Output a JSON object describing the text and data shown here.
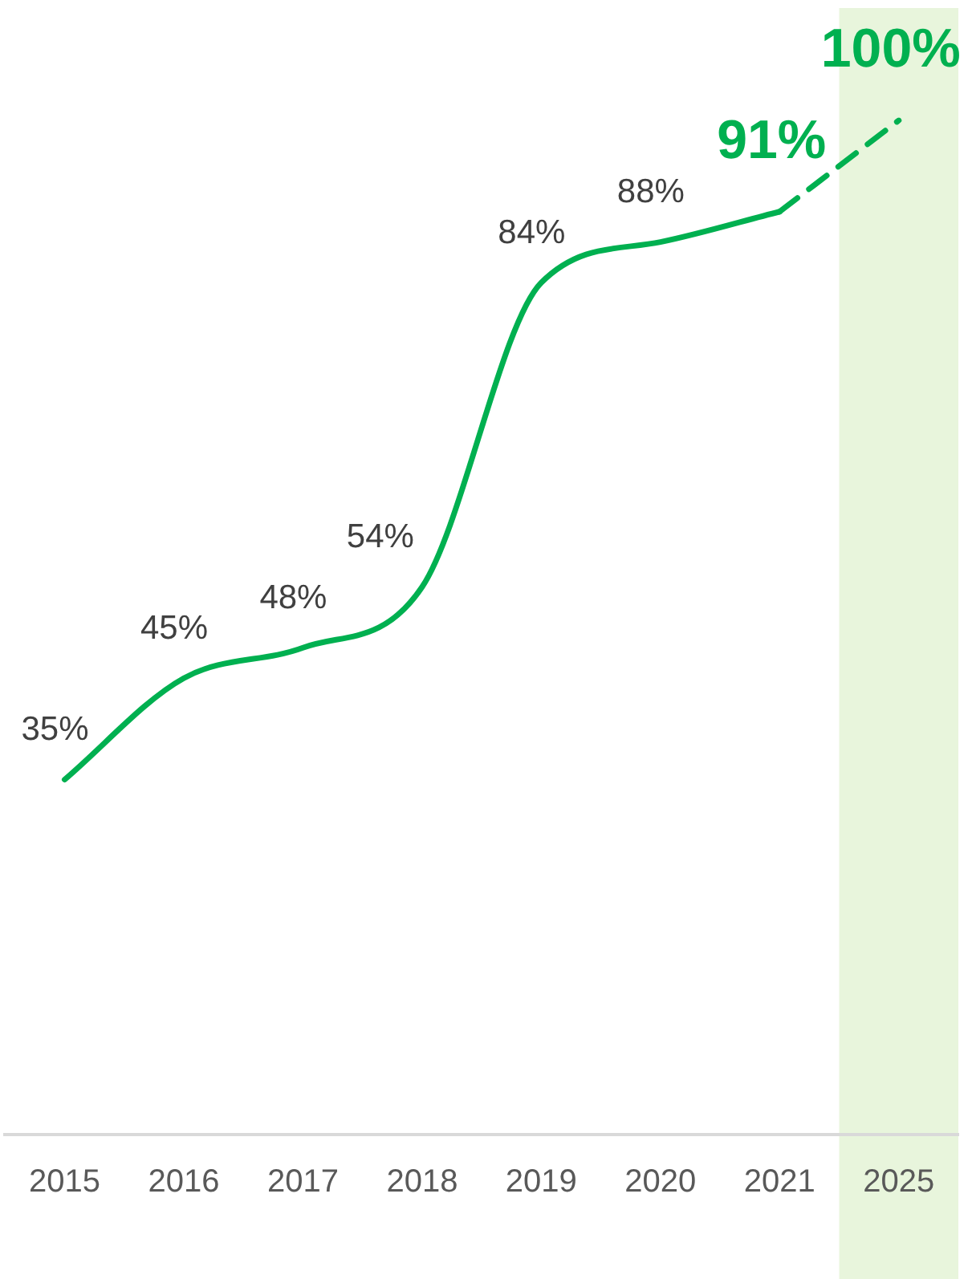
{
  "chart_data": {
    "type": "line",
    "categories": [
      "2015",
      "2016",
      "2017",
      "2018",
      "2019",
      "2020",
      "2021",
      "2025"
    ],
    "series": [
      {
        "color": "#00b050",
        "line_style": "solid",
        "values": [
          35,
          45,
          48,
          54,
          84,
          88,
          91,
          null
        ],
        "value_labels": [
          "35%",
          "45%",
          "48%",
          "54%",
          "84%",
          "88%",
          null,
          null
        ]
      },
      {
        "color": "#00b050",
        "line_style": "dashed",
        "values": [
          null,
          null,
          null,
          null,
          null,
          null,
          91,
          100
        ],
        "value_labels": [
          null,
          null,
          null,
          null,
          null,
          null,
          "91%",
          "100%"
        ]
      }
    ],
    "tick_labels": "x",
    "grid": false,
    "legend": false,
    "marker": "none",
    "bands": [
      {
        "axis": "x",
        "from": "2025",
        "to": "2025",
        "color": "#e8f5dc"
      }
    ]
  }
}
